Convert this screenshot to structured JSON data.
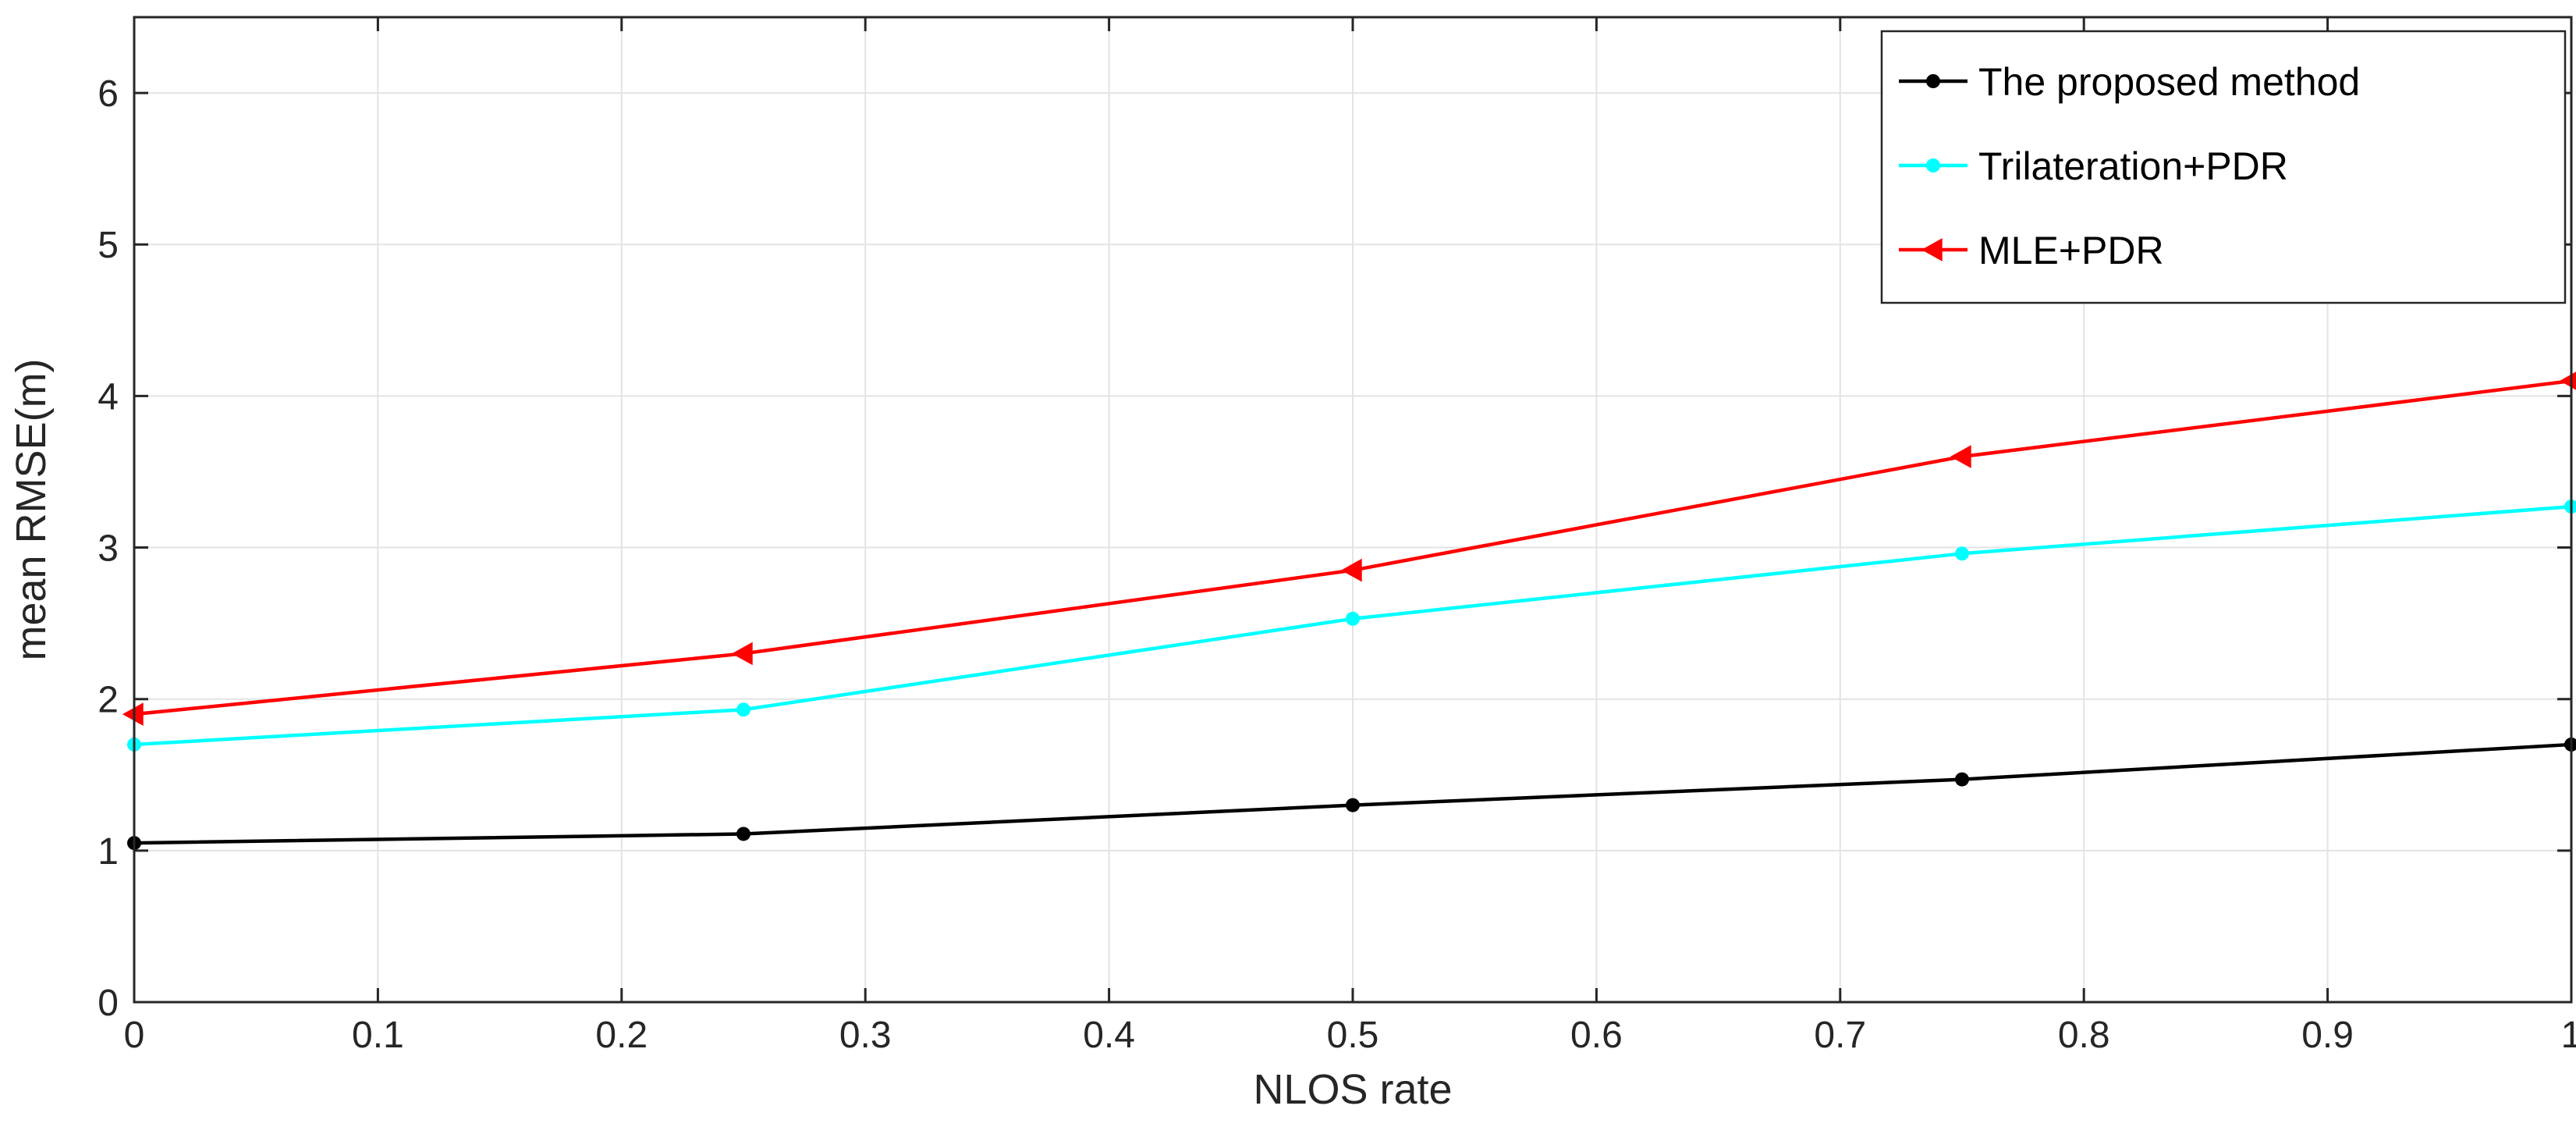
{
  "chart_data": {
    "type": "line",
    "title": "",
    "xlabel": "NLOS rate",
    "ylabel": "mean RMSE(m)",
    "xlim": [
      0,
      1
    ],
    "ylim": [
      0,
      6.5
    ],
    "xticks": [
      "0",
      "0.1",
      "0.2",
      "0.3",
      "0.4",
      "0.5",
      "0.6",
      "0.7",
      "0.8",
      "0.9",
      "1"
    ],
    "yticks": [
      "0",
      "1",
      "2",
      "3",
      "4",
      "5",
      "6"
    ],
    "grid": true,
    "legend_position": "top-right",
    "x": [
      0,
      0.25,
      0.5,
      0.75,
      1
    ],
    "series": [
      {
        "name": "The proposed method",
        "color": "#000000",
        "marker": "circle",
        "values": [
          1.05,
          1.11,
          1.3,
          1.47,
          1.7
        ]
      },
      {
        "name": "Trilateration+PDR",
        "color": "#00FFFF",
        "marker": "circle",
        "values": [
          1.7,
          1.93,
          2.53,
          2.96,
          3.27
        ]
      },
      {
        "name": "MLE+PDR",
        "color": "#FF0000",
        "marker": "triangle-left",
        "values": [
          1.9,
          2.3,
          2.85,
          3.6,
          4.1
        ]
      }
    ]
  }
}
